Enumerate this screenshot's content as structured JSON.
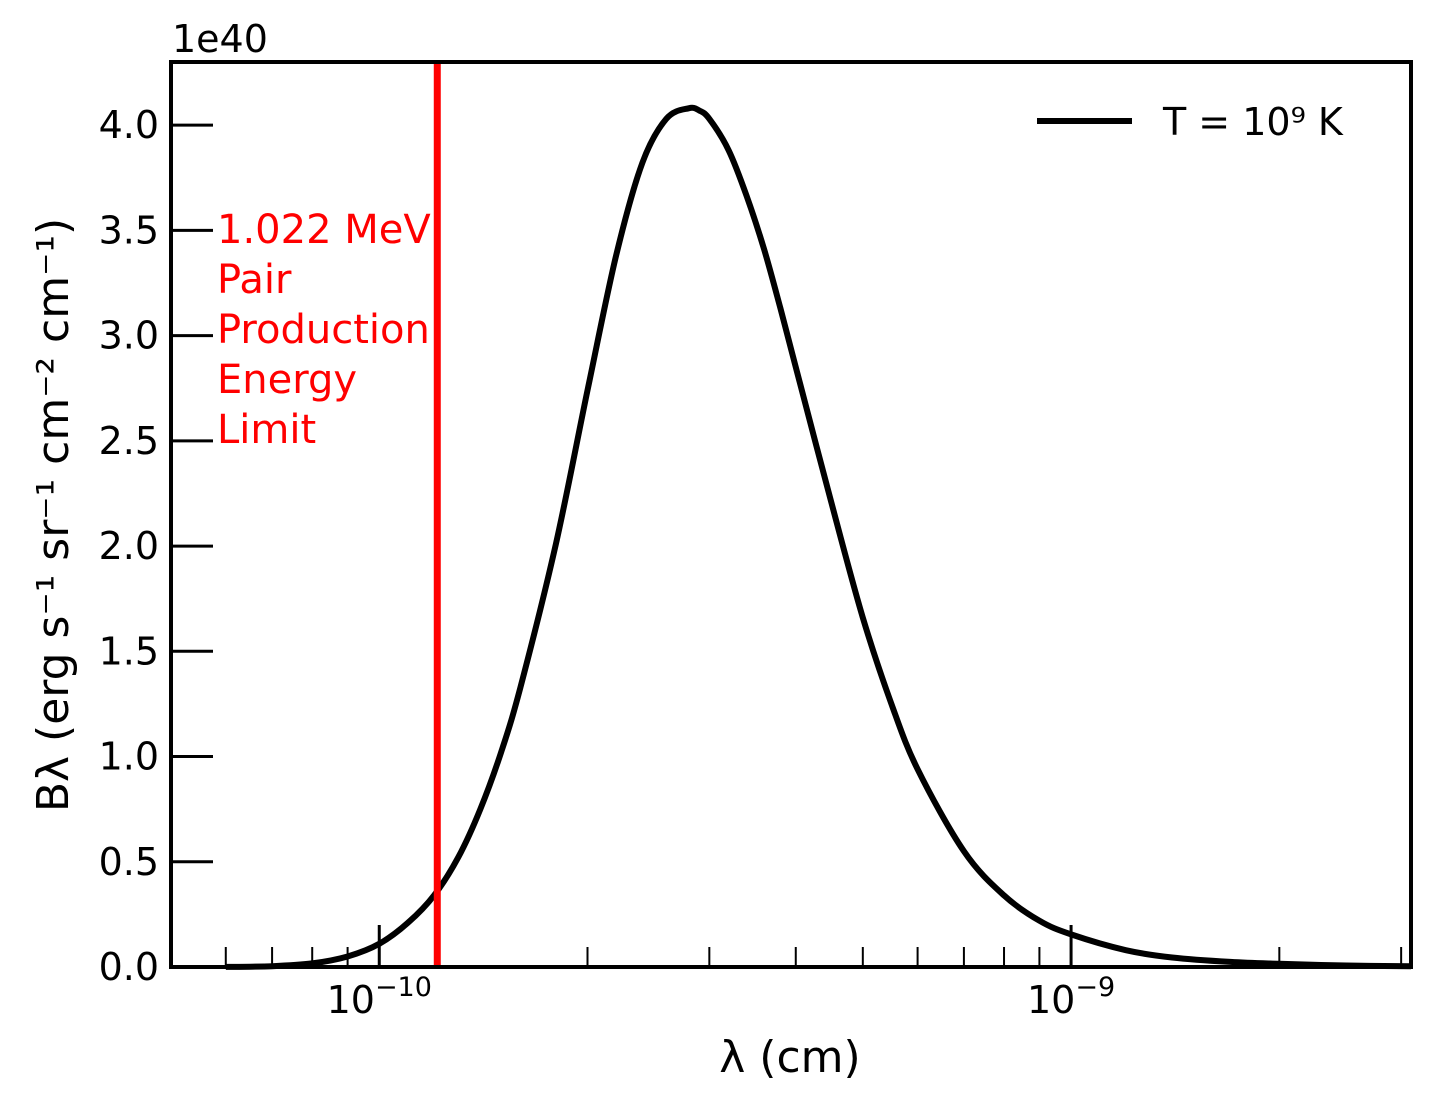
{
  "chart_data": {
    "type": "line",
    "xlabel": "λ (cm)",
    "ylabel": "Bλ (erg s⁻¹ sr⁻¹ cm⁻² cm⁻¹)",
    "x_scale": "log",
    "xlim": [
      5e-11,
      3.1e-09
    ],
    "ylim": [
      0,
      4.3e+40
    ],
    "y_offset_text": "1e40",
    "y_ticks": [
      0.0,
      0.5,
      1.0,
      1.5,
      2.0,
      2.5,
      3.0,
      3.5,
      4.0
    ],
    "y_tick_labels": [
      "0.0",
      "0.5",
      "1.0",
      "1.5",
      "2.0",
      "2.5",
      "3.0",
      "3.5",
      "4.0"
    ],
    "x_major_ticks": [
      {
        "value": 1e-10,
        "base": "10",
        "exp": "−10"
      },
      {
        "value": 1e-09,
        "base": "10",
        "exp": "−9"
      }
    ],
    "legend": {
      "position": "top-right",
      "label": "T = 10⁹ K",
      "color": "#000000"
    },
    "series": [
      {
        "name": "T = 10⁹ K",
        "color": "#000000",
        "x": [
          6e-11,
          7e-11,
          8e-11,
          9e-11,
          1e-10,
          1.1e-10,
          1.2e-10,
          1.3e-10,
          1.4e-10,
          1.5e-10,
          1.6e-10,
          1.8e-10,
          2e-10,
          2.2e-10,
          2.4e-10,
          2.6e-10,
          2.8e-10,
          2.9e-10,
          3e-10,
          3.2e-10,
          3.4e-10,
          3.6e-10,
          3.8e-10,
          4e-10,
          4.5e-10,
          5e-10,
          5.5e-10,
          6e-10,
          7e-10,
          8e-10,
          9e-10,
          1e-09,
          1.2e-09,
          1.4e-09,
          1.7e-09,
          2e-09,
          2.5e-09,
          3.1e-09
        ],
        "y": [
          5e+36,
          4e+37,
          1.7e+38,
          5e+38,
          1.1e+39,
          2.1e+39,
          3.4e+39,
          5.2e+39,
          7.5e+39,
          1.02e+40,
          1.33e+40,
          2.01e+40,
          2.74e+40,
          3.38e+40,
          3.82e+40,
          4.03e+40,
          4.08e+40,
          4.07e+40,
          4.03e+40,
          3.88e+40,
          3.66e+40,
          3.41e+40,
          3.13e+40,
          2.85e+40,
          2.21e+40,
          1.66e+40,
          1.25e+40,
          9.4e+39,
          5.5e+39,
          3.4e+39,
          2.2e+39,
          1.55e+39,
          8e+38,
          4.5e+38,
          2.4e+38,
          1.5e+38,
          7e+37,
          3.5e+37
        ]
      }
    ],
    "vline": {
      "x": 1.213e-10,
      "color": "#ff0000",
      "label_lines": [
        "1.022 MeV",
        "Pair",
        "Production",
        "Energy",
        "Limit"
      ]
    }
  }
}
